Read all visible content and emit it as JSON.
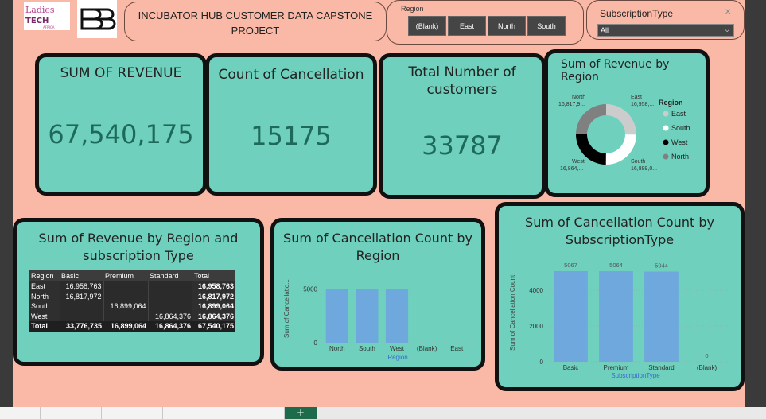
{
  "header": {
    "logo_ladies_line1": "Ladies",
    "logo_ladies_line2": "TECH",
    "logo_ladies_small": "AFRICA",
    "title": "INCUBATOR HUB CUSTOMER DATA CAPSTONE PROJECT"
  },
  "region_slicer": {
    "label": "Region",
    "options": [
      "(Blank)",
      "East",
      "North",
      "South"
    ]
  },
  "subscription_slicer": {
    "label": "SubscriptionType",
    "selected": "All"
  },
  "kpis": {
    "revenue": {
      "title": "SUM OF REVENUE",
      "value": "67,540,175"
    },
    "cancellation": {
      "title": "Count of Cancellation",
      "value": "15175"
    },
    "customers": {
      "title": "Total Number of customers",
      "value": "33787"
    }
  },
  "donut": {
    "title": "Sum of Revenue by Region",
    "legend_title": "Region",
    "labels": {
      "north": [
        "North",
        "16,817,9..."
      ],
      "east": [
        "East",
        "16,958,..."
      ],
      "west": [
        "West",
        "16,864,..."
      ],
      "south": [
        "South",
        "16,899,0..."
      ]
    },
    "colors": {
      "east": "#cccccc",
      "south": "#ffffff",
      "west": "#000000",
      "north": "#808080"
    }
  },
  "matrix": {
    "title": "Sum of Revenue by Region and subscription Type",
    "headers": [
      "Region",
      "Basic",
      "Premium",
      "Standard",
      "Total"
    ],
    "rows": [
      [
        "East",
        "16,958,763",
        "",
        "",
        "16,958,763"
      ],
      [
        "North",
        "16,817,972",
        "",
        "",
        "16,817,972"
      ],
      [
        "South",
        "",
        "16,899,064",
        "",
        "16,899,064"
      ],
      [
        "West",
        "",
        "",
        "16,864,376",
        "16,864,376"
      ]
    ],
    "total_row": [
      "Total",
      "33,776,735",
      "16,899,064",
      "16,864,376",
      "67,540,175"
    ]
  },
  "chart_data": [
    {
      "type": "pie",
      "title": "Sum of Revenue by Region",
      "categories": [
        "East",
        "South",
        "West",
        "North"
      ],
      "values": [
        16958763,
        16899064,
        16864376,
        16817972
      ]
    },
    {
      "type": "bar",
      "title": "Sum of Cancellation Count by Region",
      "xlabel": "Region",
      "ylabel": "Sum of Cancellatio...",
      "categories": [
        "North",
        "South",
        "West",
        "(Blank)",
        "East"
      ],
      "values": [
        5000,
        5000,
        5000,
        0,
        0
      ],
      "yticks": [
        "0",
        "5000"
      ],
      "ylim": [
        0,
        5200
      ]
    },
    {
      "type": "bar",
      "title": "Sum of Cancellation Count by SubscriptionType",
      "xlabel": "SubscriptionType",
      "ylabel": "Sum of Cancellation Count",
      "categories": [
        "Basic",
        "Premium",
        "Standard",
        "(Blank)"
      ],
      "values": [
        5067,
        5064,
        5044,
        0
      ],
      "data_labels": [
        "5067",
        "5064",
        "5044",
        "0"
      ],
      "yticks": [
        "0",
        "2000",
        "4000"
      ],
      "ylim": [
        0,
        5067
      ]
    }
  ]
}
